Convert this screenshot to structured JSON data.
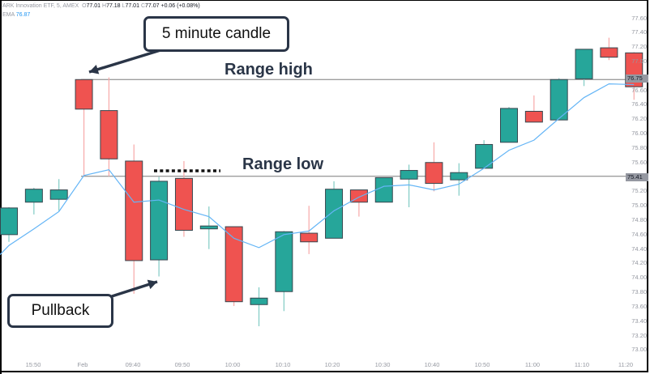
{
  "header": {
    "symbol_line": "ARK Innovation ETF, 5, AMEX",
    "open_label": "O",
    "open": "77.01",
    "high_label": "H",
    "high": "77.18",
    "low_label": "L",
    "low": "77.01",
    "close_label": "C",
    "close": "77.07",
    "change": "+0.06 (+0.08%)",
    "ema_label": "EMA",
    "ema_value": "76.87"
  },
  "annotations": {
    "candle_callout": "5 minute candle",
    "pullback_callout": "Pullback",
    "range_high": "Range high",
    "range_low": "Range low"
  },
  "price_tags": {
    "range_high": "76.75",
    "range_low": "75.41"
  },
  "colors": {
    "up": "#26a69a",
    "down": "#ef5350",
    "ema": "#64b5f6",
    "annotation": "#2a3547",
    "axis_text": "#9598a1"
  },
  "chart_data": {
    "type": "candlestick",
    "title": "ARK Innovation ETF, 5, AMEX",
    "interval": "5 minute",
    "ylim": [
      73.0,
      77.6
    ],
    "y_ticks": [
      "77.60",
      "77.40",
      "77.20",
      "77.00",
      "76.80",
      "76.60",
      "76.40",
      "76.20",
      "76.00",
      "75.80",
      "75.60",
      "75.40",
      "75.20",
      "75.00",
      "74.80",
      "74.60",
      "74.40",
      "74.20",
      "74.00",
      "73.80",
      "73.60",
      "73.40",
      "73.20",
      "73.00"
    ],
    "x_ticks": [
      "15:50",
      "Feb",
      "09:40",
      "09:50",
      "10:00",
      "10:10",
      "10:20",
      "10:30",
      "10:40",
      "10:50",
      "11:00",
      "11:10",
      "11:20"
    ],
    "horizontal_lines": [
      {
        "name": "Range high",
        "value": 76.75
      },
      {
        "name": "Range low",
        "value": 75.41
      }
    ],
    "candles": [
      {
        "o": 74.6,
        "h": 74.98,
        "l": 74.5,
        "c": 74.97
      },
      {
        "o": 75.05,
        "h": 75.25,
        "l": 74.88,
        "c": 75.23
      },
      {
        "o": 75.09,
        "h": 75.37,
        "l": 74.93,
        "c": 75.22
      },
      {
        "o": 76.75,
        "h": 76.76,
        "l": 75.41,
        "c": 76.34
      },
      {
        "o": 76.32,
        "h": 76.78,
        "l": 75.41,
        "c": 75.65
      },
      {
        "o": 75.62,
        "h": 75.85,
        "l": 73.78,
        "c": 74.24
      },
      {
        "o": 74.25,
        "h": 75.4,
        "l": 74.02,
        "c": 75.34
      },
      {
        "o": 75.38,
        "h": 75.62,
        "l": 74.57,
        "c": 74.66
      },
      {
        "o": 74.68,
        "h": 74.99,
        "l": 74.4,
        "c": 74.72
      },
      {
        "o": 74.71,
        "h": 74.71,
        "l": 73.61,
        "c": 73.67
      },
      {
        "o": 73.63,
        "h": 73.87,
        "l": 73.33,
        "c": 73.72
      },
      {
        "o": 73.81,
        "h": 74.65,
        "l": 73.54,
        "c": 74.64
      },
      {
        "o": 74.62,
        "h": 75.0,
        "l": 74.33,
        "c": 74.5
      },
      {
        "o": 74.55,
        "h": 75.34,
        "l": 74.55,
        "c": 75.23
      },
      {
        "o": 75.22,
        "h": 75.22,
        "l": 74.85,
        "c": 75.05
      },
      {
        "o": 75.05,
        "h": 75.39,
        "l": 75.05,
        "c": 75.39
      },
      {
        "o": 75.37,
        "h": 75.57,
        "l": 74.98,
        "c": 75.49
      },
      {
        "o": 75.6,
        "h": 75.88,
        "l": 75.2,
        "c": 75.31
      },
      {
        "o": 75.36,
        "h": 75.59,
        "l": 75.14,
        "c": 75.46
      },
      {
        "o": 75.52,
        "h": 75.91,
        "l": 75.52,
        "c": 75.85
      },
      {
        "o": 75.88,
        "h": 76.37,
        "l": 75.88,
        "c": 76.35
      },
      {
        "o": 76.31,
        "h": 76.53,
        "l": 76.16,
        "c": 76.16
      },
      {
        "o": 76.19,
        "h": 76.77,
        "l": 76.19,
        "c": 76.75
      },
      {
        "o": 76.76,
        "h": 77.17,
        "l": 76.66,
        "c": 77.17
      },
      {
        "o": 77.19,
        "h": 77.33,
        "l": 77.02,
        "c": 77.06
      },
      {
        "o": 77.12,
        "h": 77.13,
        "l": 76.47,
        "c": 76.65
      }
    ],
    "ema": [
      74.45,
      74.68,
      74.92,
      75.42,
      75.5,
      75.05,
      75.08,
      74.95,
      74.85,
      74.55,
      74.42,
      74.6,
      74.65,
      74.93,
      75.12,
      75.27,
      75.29,
      75.22,
      75.3,
      75.52,
      75.77,
      75.91,
      76.21,
      76.5,
      76.69,
      76.68
    ]
  }
}
